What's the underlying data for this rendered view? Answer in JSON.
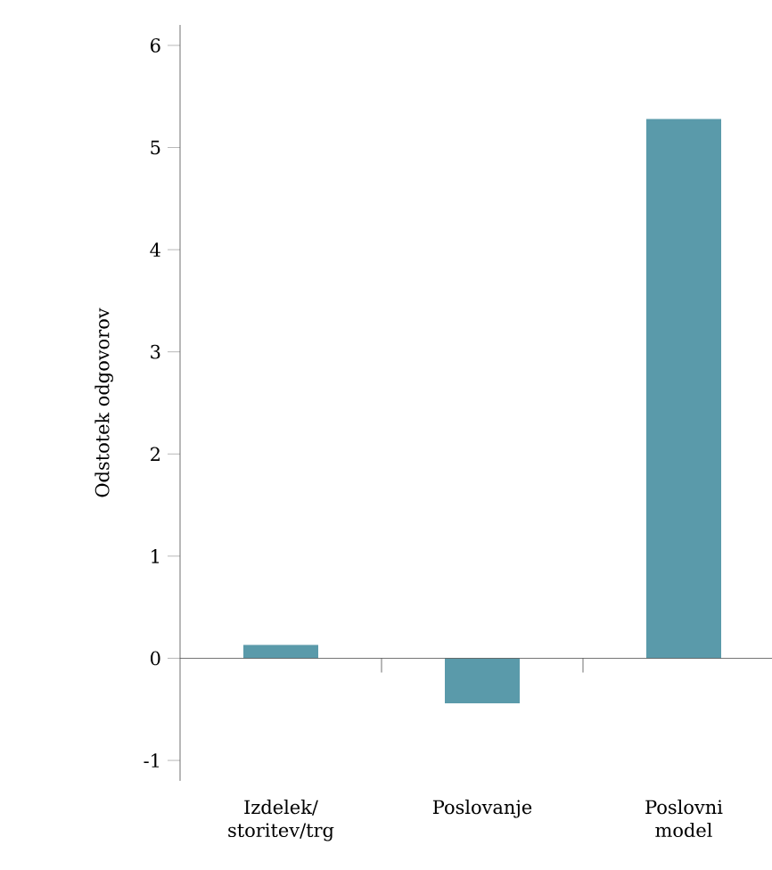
{
  "chart_data": {
    "type": "bar",
    "ylabel": "Odstotek odgovorov",
    "categories": [
      "Izdelek/ storitev/trg",
      "Poslovanje",
      "Poslovni model"
    ],
    "values": [
      0.13,
      -0.44,
      5.28
    ],
    "color": "#5a9aaa",
    "ylim": [
      -1.2,
      6.2
    ],
    "yticks": [
      -1,
      0,
      1,
      2,
      3,
      4,
      5,
      6
    ]
  }
}
